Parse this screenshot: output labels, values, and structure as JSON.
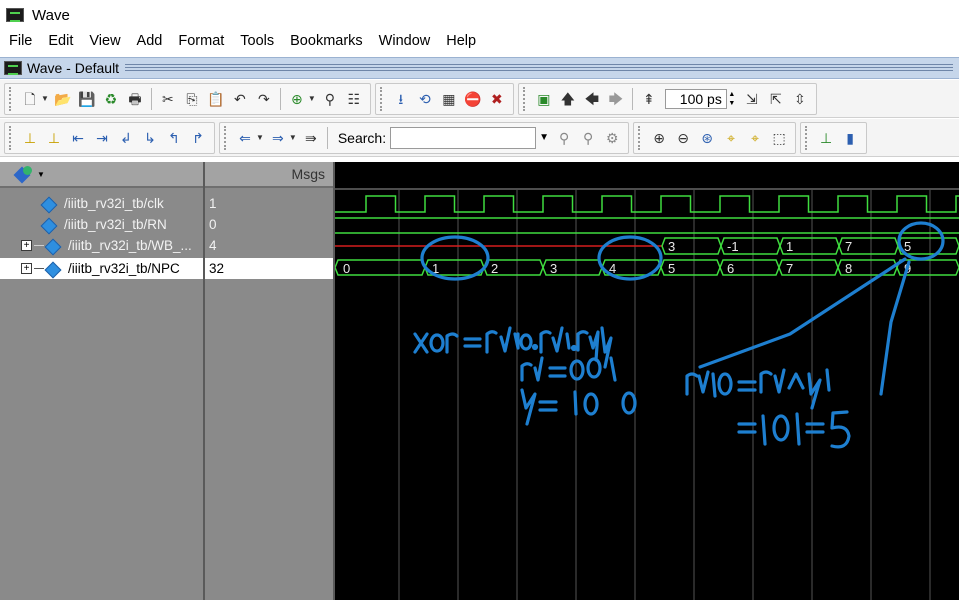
{
  "window_title": "Wave",
  "menu": [
    "File",
    "Edit",
    "View",
    "Add",
    "Format",
    "Tools",
    "Bookmarks",
    "Window",
    "Help"
  ],
  "wave_window_title": "Wave - Default",
  "toolbar": {
    "zoom_value": "100",
    "zoom_unit": "ps",
    "search_label": "Search:",
    "search_placeholder": ""
  },
  "panes": {
    "values_header": "Msgs"
  },
  "signals": [
    {
      "name": "/iiitb_rv32i_tb/clk",
      "value": "1",
      "expandable": false,
      "selected": false
    },
    {
      "name": "/iiitb_rv32i_tb/RN",
      "value": "0",
      "expandable": false,
      "selected": false
    },
    {
      "name": "/iiitb_rv32i_tb/WB_...",
      "value": "4",
      "expandable": true,
      "selected": false
    },
    {
      "name": "/iiitb_rv32i_tb/NPC",
      "value": "32",
      "expandable": true,
      "selected": true
    }
  ],
  "waveforms": {
    "wb_values": [
      "3",
      "-1",
      "1",
      "7",
      "5"
    ],
    "npc_values": [
      "0",
      "1",
      "2",
      "3",
      "4",
      "5",
      "6",
      "7",
      "8",
      "9"
    ]
  },
  "annotations": {
    "line1": "xor = r10.r1.r4",
    "line2": "r1 = 001",
    "line3": "r4 = 100",
    "line4": "r10 = r1^r4",
    "line5": "= 101 = 5"
  },
  "colors": {
    "wave_green": "#3fdc3f",
    "wave_red": "#d61e1e",
    "annotation_blue": "#1e7fd0",
    "pane_grey": "#8a8a8a",
    "header_blue": "#c6d6ea"
  },
  "icons": {
    "app": "modelsim-wave-icon",
    "toolbar1": [
      "new-file-icon",
      "open-folder-icon",
      "save-icon",
      "reload-icon",
      "print-icon",
      "cut-icon",
      "copy-icon",
      "paste-icon",
      "undo-icon",
      "redo-icon",
      "add-icon",
      "find-icon",
      "format-icon",
      "step-icon",
      "restart-icon",
      "run-icon",
      "break-icon",
      "stop-icon",
      "group-icon",
      "up-arrow-icon",
      "back-arrow-icon",
      "forward-arrow-icon",
      "run-length-icon",
      "zoom-in-full-icon",
      "zoom-out-full-icon",
      "zoom-fit-icon"
    ],
    "toolbar2": [
      "insert-cursor-icon",
      "delete-cursor-icon",
      "prev-edge-icon",
      "next-edge-icon",
      "prev-falling-icon",
      "next-falling-icon",
      "prev-rising-icon",
      "next-rising-icon",
      "find-prev-icon",
      "find-next-icon",
      "find-signal-icon",
      "search-binoculars-icon",
      "zoom-in-icon",
      "zoom-out-icon",
      "zoom-full-icon",
      "zoom-cursor-icon",
      "zoom-lock-icon",
      "wave-format-icon",
      "cursor-line-icon",
      "bar-icon"
    ]
  }
}
